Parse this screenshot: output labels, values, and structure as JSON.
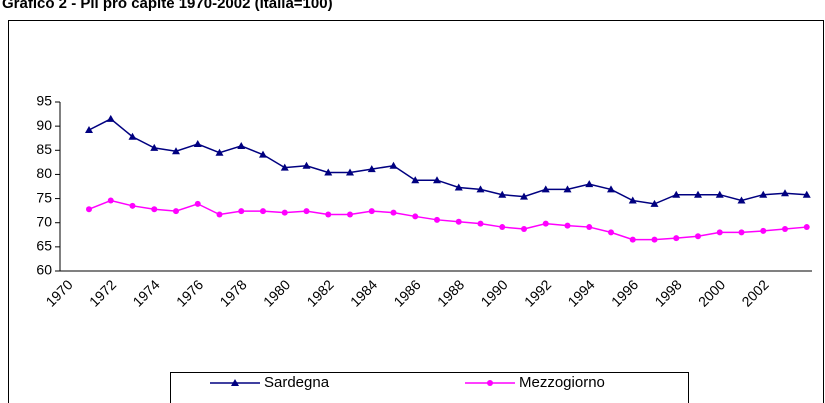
{
  "chart_data": {
    "type": "line",
    "title": "Grafico 2 - Pil pro capite 1970-2002 (Italia=100)",
    "categories": [
      "1970",
      null,
      "1972",
      null,
      "1974",
      null,
      "1976",
      null,
      "1978",
      null,
      "1980",
      null,
      "1982",
      null,
      "1984",
      null,
      "1986",
      null,
      "1988",
      null,
      "1990",
      null,
      "1992",
      null,
      "1994",
      null,
      "1996",
      null,
      "1998",
      null,
      "2000",
      null,
      "2002",
      null
    ],
    "series": [
      {
        "name": "Sardegna",
        "color": "#000080",
        "marker": "triangle",
        "values": [
          89.2,
          91.5,
          87.8,
          85.5,
          84.8,
          86.3,
          84.5,
          85.9,
          84.1,
          81.4,
          81.8,
          80.4,
          80.4,
          81.1,
          81.8,
          78.8,
          78.8,
          77.3,
          76.9,
          75.8,
          75.4,
          76.9,
          76.9,
          78.0,
          76.9,
          74.6,
          73.9,
          75.8,
          75.8,
          75.8,
          74.6,
          75.8,
          76.1,
          75.8
        ]
      },
      {
        "name": "Mezzogiorno",
        "color": "#ff00ff",
        "marker": "circle",
        "values": [
          72.8,
          74.6,
          73.5,
          72.8,
          72.4,
          73.9,
          71.7,
          72.4,
          72.4,
          72.1,
          72.4,
          71.7,
          71.7,
          72.4,
          72.1,
          71.3,
          70.6,
          70.2,
          69.8,
          69.1,
          68.7,
          69.8,
          69.4,
          69.1,
          68.0,
          66.5,
          66.5,
          66.8,
          67.2,
          68.0,
          68.0,
          68.3,
          68.7,
          69.1
        ]
      }
    ],
    "ylim": [
      60,
      95
    ],
    "yticks": [
      60,
      65,
      70,
      75,
      80,
      85,
      90,
      95
    ],
    "legend": "bottom"
  }
}
